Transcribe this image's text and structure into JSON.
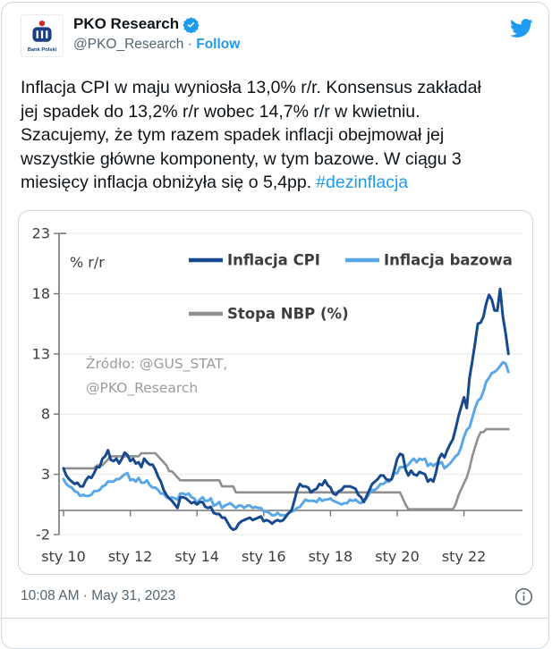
{
  "header": {
    "name": "PKO Research",
    "handle": "@PKO_Research",
    "separator": "·",
    "follow_label": "Follow",
    "avatar_caption": "Bank Polski"
  },
  "tweet": {
    "lines": [
      "Inflacja CPI w maju wyniosła 13,0% r/r. Konsensus zakładał",
      "jej spadek do 13,2% r/r wobec 14,7% r/r w kwietniu.",
      "Szacujemy, że tym razem spadek inflacji obejmował jej",
      "wszystkie główne komponenty, w tym bazowe. W ciągu 3"
    ],
    "last_line": "miesięcy inflacja obniżyła się o 5,4pp.",
    "hashtag": "#dezinflacja"
  },
  "footer": {
    "timestamp": "10:08 AM · May 31, 2023"
  },
  "colors": {
    "accent_blue": "#1d9bf0",
    "text_dark": "#0f1419",
    "text_gray": "#536471",
    "card_border": "#cfd9de",
    "chart_border": "#d4d4d4",
    "cpi_navy": "#17498f",
    "core_blue": "#5aa7e8",
    "nbp_gray": "#8f8f8f"
  },
  "chart_data": {
    "type": "line",
    "unit_label": "% r/r",
    "source_lines": [
      "Źródło: @GUS_STAT,",
      "@PKO_Research"
    ],
    "x_tick_labels": [
      "sty 10",
      "sty 12",
      "sty 14",
      "sty 16",
      "sty 18",
      "sty 20",
      "sty 22"
    ],
    "x_tick_years": [
      2010,
      2012,
      2014,
      2016,
      2018,
      2020,
      2022
    ],
    "y_ticks": [
      -2,
      3,
      8,
      13,
      18,
      23
    ],
    "ylim": [
      -2,
      23
    ],
    "x_start_year": 2010,
    "x_monthly_step": true,
    "grid": true,
    "legend_position": "top-inside",
    "series": [
      {
        "name": "Inflacja CPI",
        "color": "#17498f",
        "stroke_width": 3,
        "values": [
          3.5,
          2.9,
          2.6,
          2.4,
          2.2,
          2.3,
          2.0,
          2.0,
          2.5,
          2.8,
          2.7,
          3.1,
          3.6,
          3.6,
          4.3,
          4.5,
          5.0,
          4.2,
          4.1,
          4.3,
          3.9,
          4.3,
          4.8,
          4.6,
          4.1,
          4.3,
          3.9,
          4.0,
          3.6,
          4.3,
          4.0,
          3.8,
          3.8,
          3.4,
          2.8,
          2.4,
          1.7,
          1.3,
          1.0,
          0.8,
          0.5,
          0.2,
          1.1,
          1.1,
          1.0,
          0.8,
          0.6,
          0.7,
          0.5,
          0.7,
          0.7,
          0.3,
          0.2,
          0.3,
          -0.2,
          -0.3,
          -0.3,
          -0.6,
          -0.6,
          -1.0,
          -1.4,
          -1.6,
          -1.5,
          -1.1,
          -0.9,
          -0.8,
          -0.7,
          -0.6,
          -0.8,
          -0.7,
          -0.6,
          -0.5,
          -0.9,
          -0.8,
          -0.9,
          -1.1,
          -0.9,
          -0.8,
          -0.9,
          -0.8,
          -0.5,
          -0.2,
          0.0,
          0.8,
          1.7,
          2.2,
          2.0,
          2.0,
          1.9,
          1.5,
          1.7,
          1.8,
          2.2,
          2.1,
          2.5,
          2.1,
          1.9,
          1.4,
          1.3,
          1.6,
          1.7,
          2.0,
          2.0,
          2.0,
          1.9,
          1.8,
          1.3,
          1.1,
          0.7,
          1.2,
          1.7,
          2.2,
          2.4,
          2.6,
          2.9,
          2.9,
          2.6,
          2.5,
          2.6,
          3.4,
          4.3,
          4.7,
          4.6,
          3.4,
          2.9,
          3.3,
          3.0,
          2.9,
          3.2,
          3.1,
          3.0,
          2.4,
          2.6,
          2.4,
          3.2,
          4.3,
          4.7,
          4.4,
          5.0,
          5.5,
          5.9,
          6.8,
          7.8,
          8.6,
          9.4,
          8.5,
          11.0,
          12.4,
          13.9,
          15.5,
          15.6,
          16.1,
          17.2,
          17.9,
          17.5,
          16.6,
          16.6,
          18.4,
          16.1,
          14.7,
          13.0
        ]
      },
      {
        "name": "Inflacja bazowa",
        "color": "#5aa7e8",
        "stroke_width": 3,
        "values": [
          2.6,
          2.2,
          2.0,
          1.9,
          1.6,
          1.5,
          1.2,
          1.3,
          1.2,
          1.2,
          1.3,
          1.6,
          1.6,
          1.7,
          2.0,
          2.1,
          2.4,
          2.4,
          2.4,
          2.6,
          2.6,
          2.8,
          3.0,
          3.1,
          2.5,
          2.6,
          2.4,
          2.7,
          2.3,
          2.3,
          2.5,
          2.1,
          1.9,
          1.9,
          1.7,
          1.4,
          1.4,
          1.1,
          1.0,
          1.1,
          1.0,
          0.9,
          1.4,
          1.4,
          1.3,
          1.4,
          1.1,
          1.0,
          0.6,
          0.9,
          1.1,
          0.8,
          0.8,
          1.0,
          0.4,
          0.5,
          0.7,
          0.2,
          0.4,
          0.5,
          0.6,
          0.4,
          0.2,
          0.4,
          0.4,
          0.2,
          0.4,
          0.4,
          0.2,
          0.3,
          0.2,
          0.2,
          -0.1,
          -0.1,
          -0.2,
          -0.4,
          -0.4,
          -0.2,
          -0.4,
          -0.4,
          -0.4,
          -0.2,
          -0.1,
          0.0,
          0.2,
          0.3,
          0.6,
          0.9,
          0.8,
          0.8,
          0.8,
          0.7,
          1.0,
          0.8,
          0.9,
          0.9,
          1.0,
          0.8,
          0.7,
          0.6,
          0.5,
          0.6,
          0.6,
          0.9,
          0.8,
          0.9,
          0.7,
          0.6,
          0.8,
          1.0,
          1.4,
          1.7,
          1.7,
          1.9,
          2.2,
          2.2,
          2.4,
          2.4,
          2.6,
          3.1,
          3.1,
          3.6,
          3.6,
          3.6,
          3.8,
          4.1,
          4.3,
          4.0,
          4.3,
          4.2,
          4.3,
          3.7,
          3.9,
          3.7,
          3.9,
          3.9,
          4.0,
          3.5,
          3.7,
          3.9,
          4.2,
          4.5,
          4.7,
          5.3,
          6.1,
          6.7,
          6.9,
          7.7,
          8.5,
          9.1,
          9.3,
          9.9,
          10.7,
          11.0,
          11.4,
          11.5,
          11.7,
          12.0,
          12.3,
          12.2,
          11.5
        ]
      },
      {
        "name": "Stopa NBP (%)",
        "color": "#8f8f8f",
        "stroke_width": 2.6,
        "values": [
          3.5,
          3.5,
          3.5,
          3.5,
          3.5,
          3.5,
          3.5,
          3.5,
          3.5,
          3.5,
          3.5,
          3.5,
          3.75,
          3.75,
          3.75,
          4.0,
          4.25,
          4.5,
          4.5,
          4.5,
          4.5,
          4.5,
          4.5,
          4.5,
          4.5,
          4.5,
          4.5,
          4.5,
          4.75,
          4.75,
          4.75,
          4.75,
          4.75,
          4.75,
          4.5,
          4.25,
          4.0,
          3.75,
          3.25,
          3.25,
          3.0,
          2.75,
          2.5,
          2.5,
          2.5,
          2.5,
          2.5,
          2.5,
          2.5,
          2.5,
          2.5,
          2.5,
          2.5,
          2.5,
          2.5,
          2.5,
          2.5,
          2.0,
          2.0,
          2.0,
          2.0,
          2.0,
          1.5,
          1.5,
          1.5,
          1.5,
          1.5,
          1.5,
          1.5,
          1.5,
          1.5,
          1.5,
          1.5,
          1.5,
          1.5,
          1.5,
          1.5,
          1.5,
          1.5,
          1.5,
          1.5,
          1.5,
          1.5,
          1.5,
          1.5,
          1.5,
          1.5,
          1.5,
          1.5,
          1.5,
          1.5,
          1.5,
          1.5,
          1.5,
          1.5,
          1.5,
          1.5,
          1.5,
          1.5,
          1.5,
          1.5,
          1.5,
          1.5,
          1.5,
          1.5,
          1.5,
          1.5,
          1.5,
          1.5,
          1.5,
          1.5,
          1.5,
          1.5,
          1.5,
          1.5,
          1.5,
          1.5,
          1.5,
          1.5,
          1.5,
          1.5,
          1.5,
          1.0,
          0.5,
          0.1,
          0.1,
          0.1,
          0.1,
          0.1,
          0.1,
          0.1,
          0.1,
          0.1,
          0.1,
          0.1,
          0.1,
          0.1,
          0.1,
          0.1,
          0.1,
          0.1,
          0.5,
          1.25,
          1.75,
          2.25,
          2.75,
          3.5,
          4.5,
          5.25,
          6.0,
          6.5,
          6.5,
          6.75,
          6.75,
          6.75,
          6.75,
          6.75,
          6.75,
          6.75,
          6.75,
          6.75
        ]
      }
    ]
  }
}
